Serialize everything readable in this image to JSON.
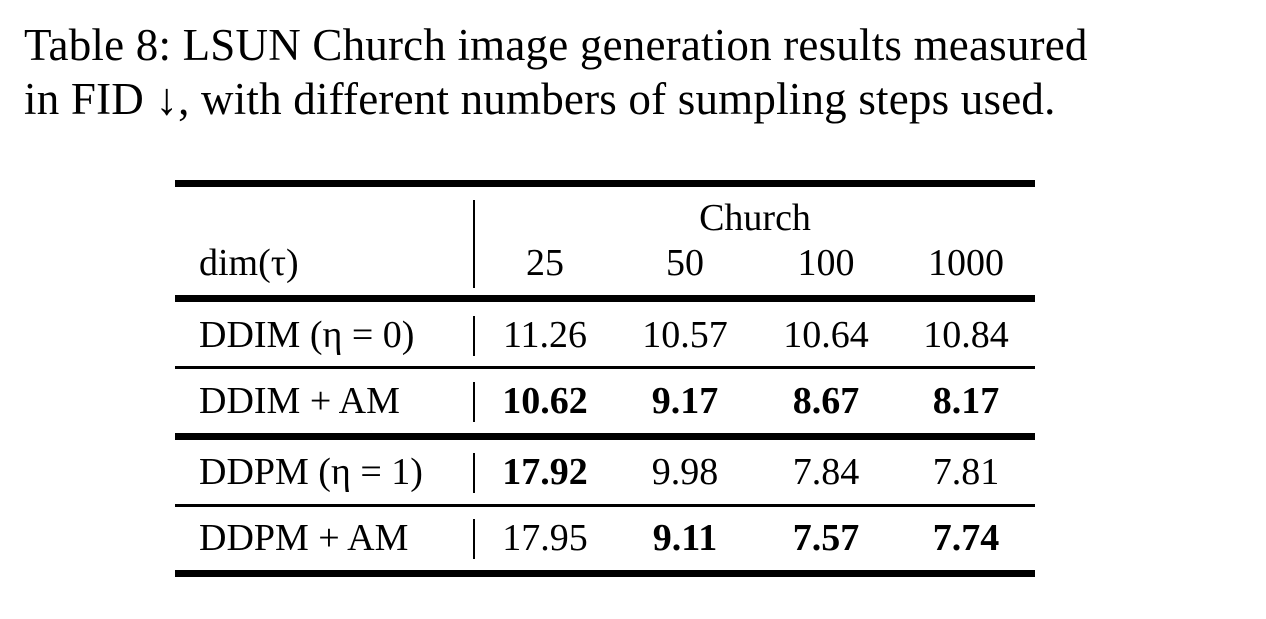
{
  "caption": {
    "line1": "Table 8: LSUN Church image generation results measured",
    "line2": "in FID ↓, with different numbers of sumpling steps used."
  },
  "table": {
    "group_header": "Church",
    "row_header_label": "dim(τ)",
    "columns": [
      "25",
      "50",
      "100",
      "1000"
    ],
    "rows": [
      {
        "method": "DDIM (η = 0)",
        "values": [
          "11.26",
          "10.57",
          "10.64",
          "10.84"
        ],
        "bold": [
          false,
          false,
          false,
          false
        ]
      },
      {
        "method": "DDIM + AM",
        "values": [
          "10.62",
          "9.17",
          "8.67",
          "8.17"
        ],
        "bold": [
          true,
          true,
          true,
          true
        ]
      },
      {
        "method": "DDPM (η = 1)",
        "values": [
          "17.92",
          "9.98",
          "7.84",
          "7.81"
        ],
        "bold": [
          true,
          false,
          false,
          false
        ]
      },
      {
        "method": "DDPM + AM",
        "values": [
          "17.95",
          "9.11",
          "7.57",
          "7.74"
        ],
        "bold": [
          false,
          true,
          true,
          true
        ]
      }
    ]
  }
}
